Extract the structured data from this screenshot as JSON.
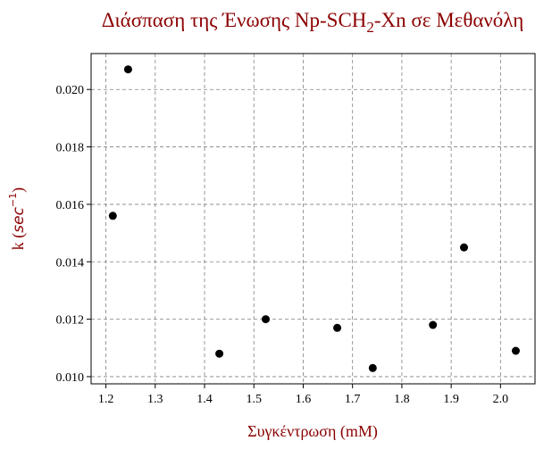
{
  "chart_data": {
    "type": "scatter",
    "title": "Διάσπαση της Ένωσης Np-SCH",
    "title_subscript": "2",
    "title_suffix": "-Xn σε Μεθανόλη",
    "xlabel": "Συγκέντρωση (mM)",
    "ylabel_prefix": "k (",
    "ylabel_math": "sec",
    "ylabel_exponent": "−1",
    "ylabel_suffix": ")",
    "xlim": [
      1.17,
      2.07
    ],
    "ylim": [
      0.00975,
      0.02125
    ],
    "xticks": [
      1.2,
      1.3,
      1.4,
      1.5,
      1.6,
      1.7,
      1.8,
      1.9,
      2.0
    ],
    "xtick_labels": [
      "1.2",
      "1.3",
      "1.4",
      "1.5",
      "1.6",
      "1.7",
      "1.8",
      "1.9",
      "2.0"
    ],
    "yticks": [
      0.01,
      0.012,
      0.014,
      0.016,
      0.018,
      0.02
    ],
    "ytick_labels": [
      "0.010",
      "0.012",
      "0.014",
      "0.016",
      "0.018",
      "0.020"
    ],
    "grid": true,
    "marker_color": "#000000",
    "title_color": "#8b0000",
    "label_color": "#8b0000",
    "grid_color": "#808080",
    "points": [
      {
        "x": 1.214,
        "y": 0.0156
      },
      {
        "x": 1.245,
        "y": 0.0207
      },
      {
        "x": 1.43,
        "y": 0.0108
      },
      {
        "x": 1.524,
        "y": 0.012
      },
      {
        "x": 1.669,
        "y": 0.0117
      },
      {
        "x": 1.741,
        "y": 0.0103
      },
      {
        "x": 1.863,
        "y": 0.0118
      },
      {
        "x": 1.926,
        "y": 0.0145
      },
      {
        "x": 2.031,
        "y": 0.0109
      }
    ]
  }
}
